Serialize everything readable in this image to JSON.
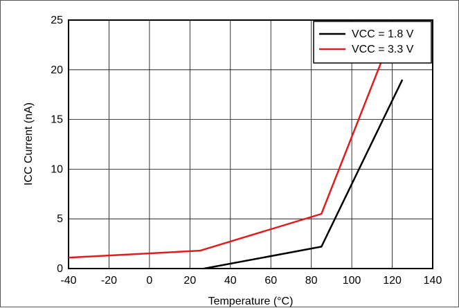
{
  "chart_data": {
    "type": "line",
    "title": "",
    "xlabel": "Temperature (°C)",
    "ylabel": "ICC Current (nA)",
    "xlim": [
      -40,
      140
    ],
    "ylim": [
      0,
      25
    ],
    "xticks": [
      -40,
      -20,
      0,
      20,
      40,
      60,
      80,
      100,
      120,
      140
    ],
    "yticks": [
      0,
      5,
      10,
      15,
      20,
      25
    ],
    "grid": true,
    "legend_position": "top-right",
    "series": [
      {
        "name": "VCC = 1.8 V",
        "color": "#000000",
        "x": [
          27,
          85,
          100,
          125
        ],
        "y": [
          0,
          2.2,
          8.5,
          19
        ]
      },
      {
        "name": "VCC = 3.3 V",
        "color": "#e31a1c",
        "x": [
          -40,
          25,
          85,
          115
        ],
        "y": [
          1.1,
          1.8,
          5.5,
          21
        ]
      }
    ]
  }
}
